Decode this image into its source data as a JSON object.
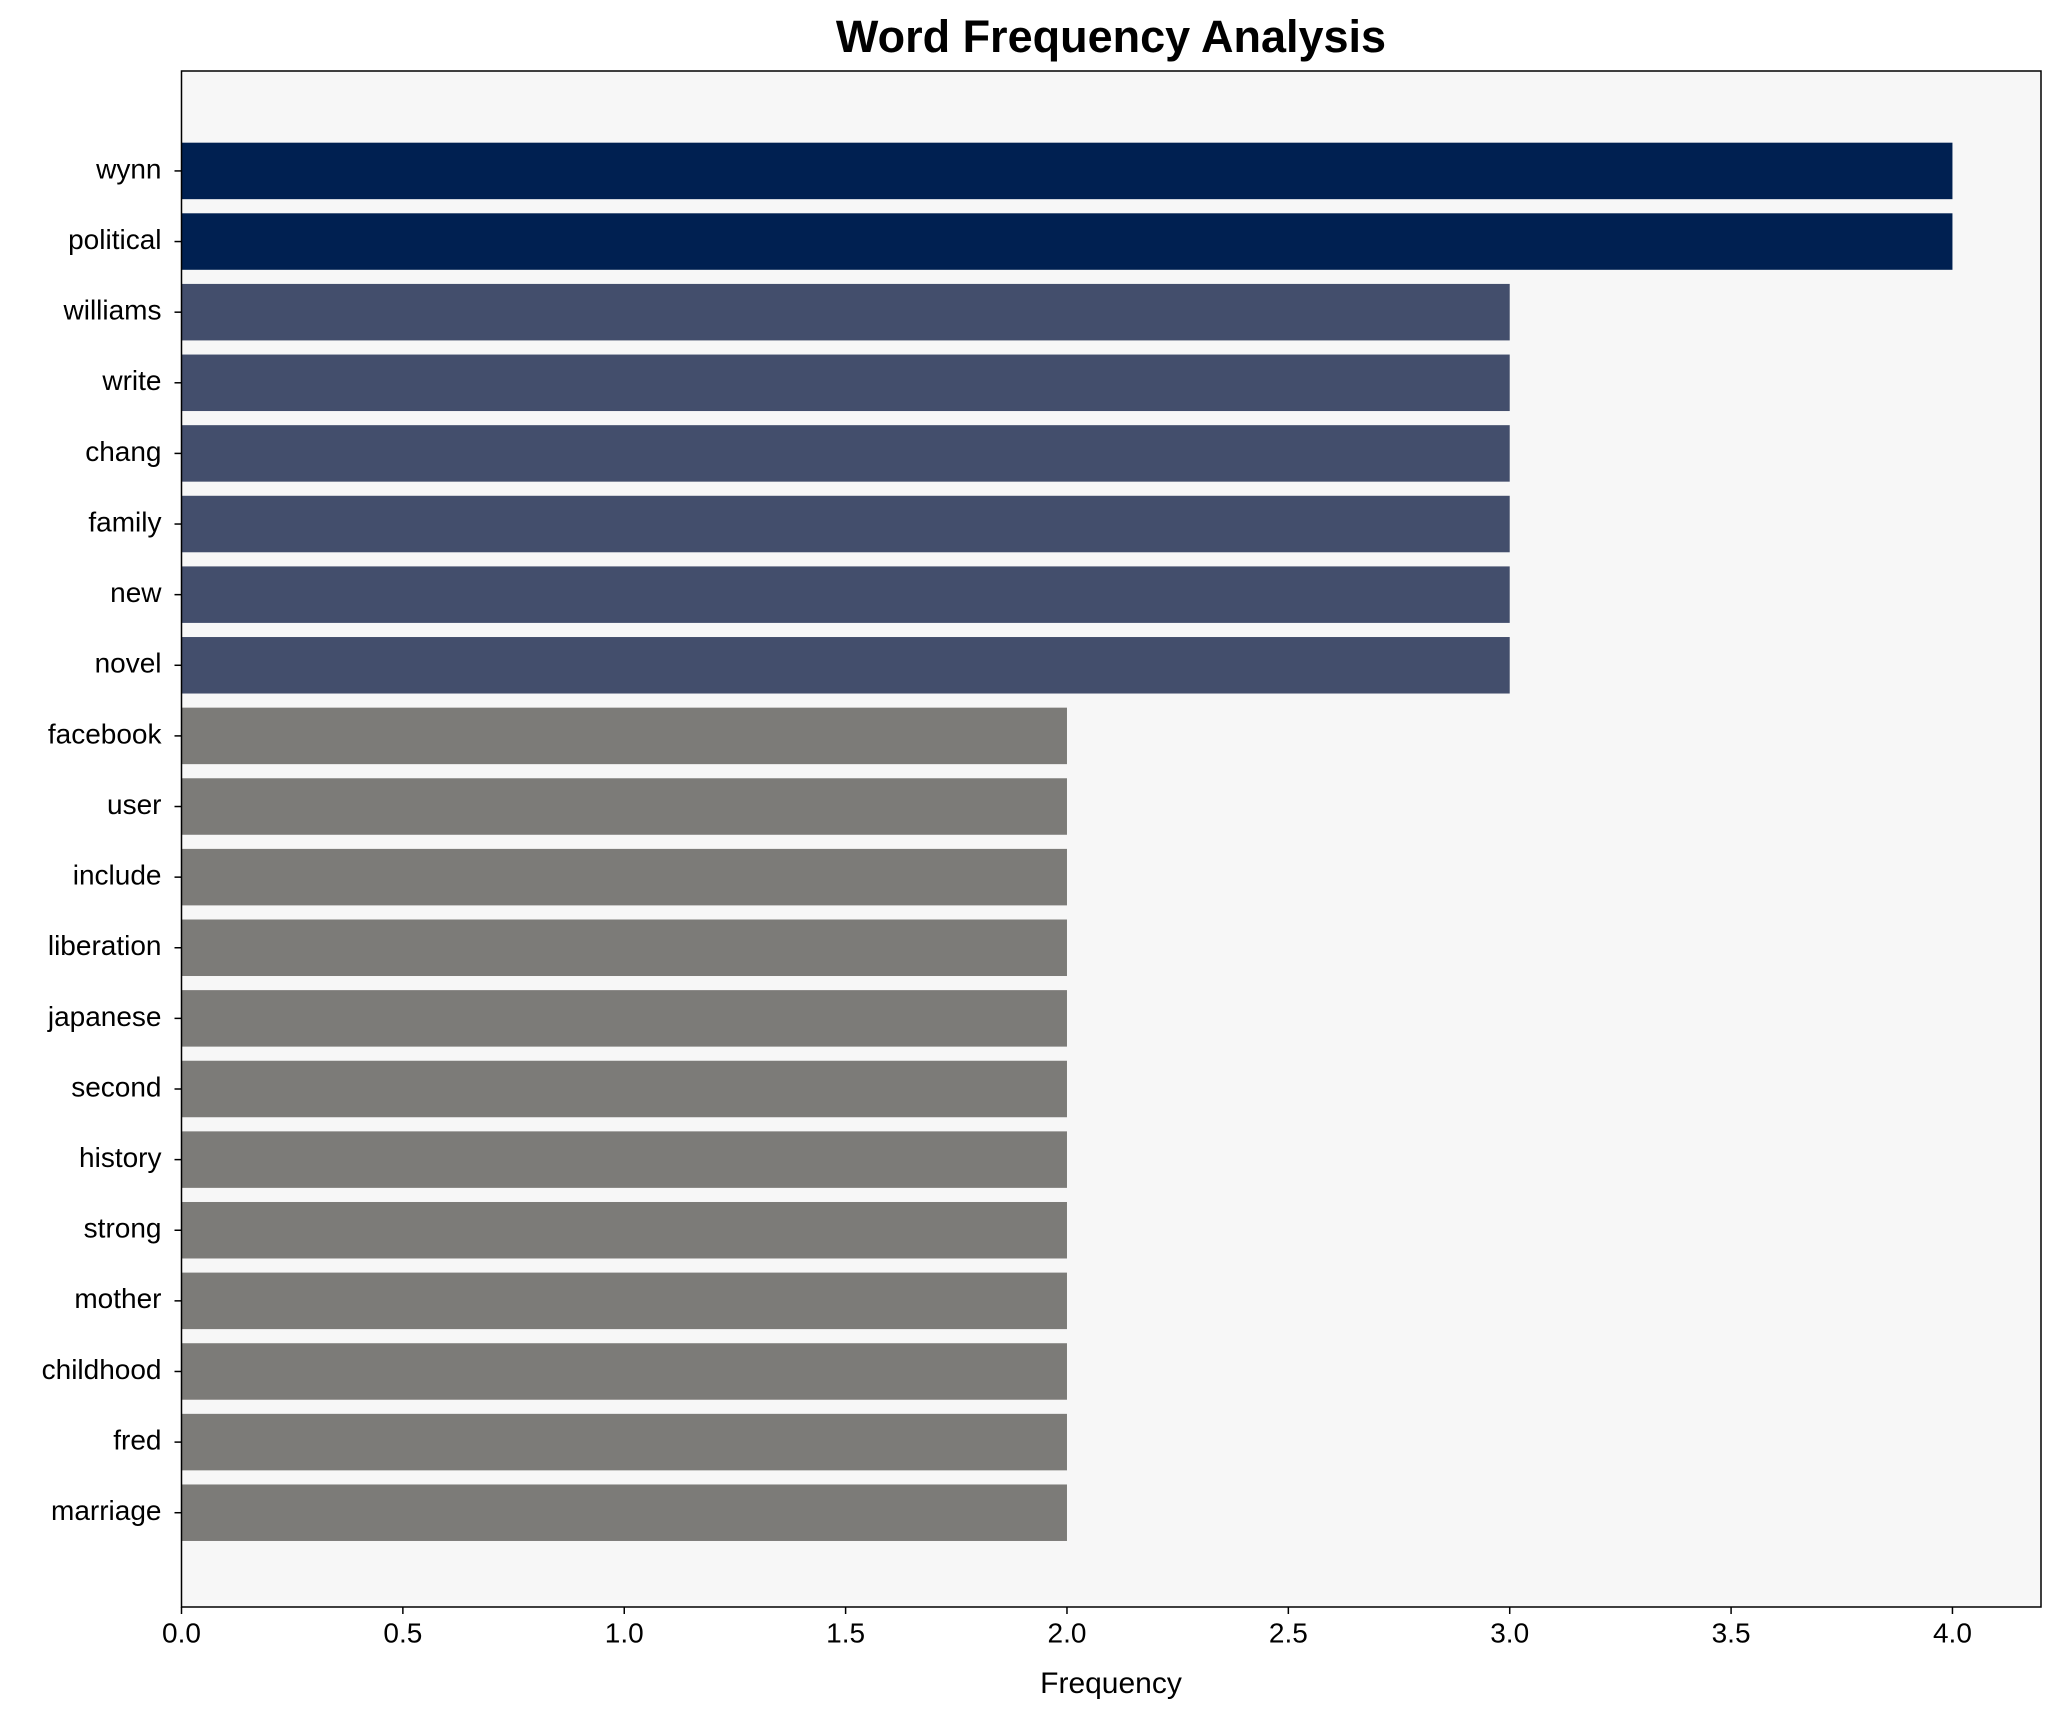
{
  "chart_data": {
    "type": "barh",
    "title": "Word Frequency Analysis",
    "x_label": "Frequency",
    "categories": [
      "wynn",
      "political",
      "williams",
      "write",
      "chang",
      "family",
      "new",
      "novel",
      "facebook",
      "user",
      "include",
      "liberation",
      "japanese",
      "second",
      "history",
      "strong",
      "mother",
      "childhood",
      "fred",
      "marriage"
    ],
    "values": [
      4,
      4,
      3,
      3,
      3,
      3,
      3,
      3,
      2,
      2,
      2,
      2,
      2,
      2,
      2,
      2,
      2,
      2,
      2,
      2
    ],
    "colors": [
      "#002051",
      "#002051",
      "#434e6c",
      "#434e6c",
      "#434e6c",
      "#434e6c",
      "#434e6c",
      "#434e6c",
      "#7c7b78",
      "#7c7b78",
      "#7c7b78",
      "#7c7b78",
      "#7c7b78",
      "#7c7b78",
      "#7c7b78",
      "#7c7b78",
      "#7c7b78",
      "#7c7b78",
      "#7c7b78",
      "#7c7b78"
    ],
    "xlim": [
      0,
      4.2
    ],
    "xticks": [
      {
        "value": 0,
        "label": "0.0"
      },
      {
        "value": 0.5,
        "label": "0.5"
      },
      {
        "value": 1,
        "label": "1.0"
      },
      {
        "value": 1.5,
        "label": "1.5"
      },
      {
        "value": 2,
        "label": "2.0"
      },
      {
        "value": 2.5,
        "label": "2.5"
      },
      {
        "value": 3,
        "label": "3.0"
      },
      {
        "value": 3.5,
        "label": "3.5"
      },
      {
        "value": 4,
        "label": "4.0"
      }
    ],
    "background": "#f7f7f7"
  }
}
